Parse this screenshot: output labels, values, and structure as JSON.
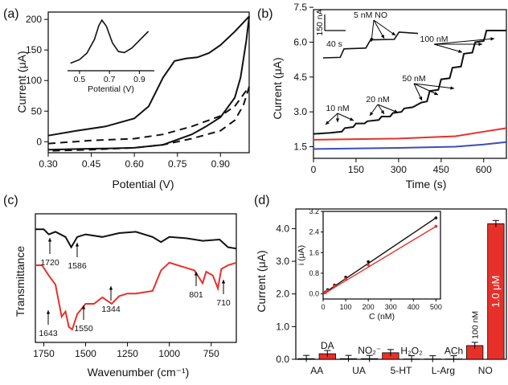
{
  "colors": {
    "black": "#111111",
    "red": "#e8302a",
    "blue": "#3a4fb5",
    "bar_red": "#e8302a"
  },
  "chart_data": [
    {
      "panel": "(a)",
      "type": "line",
      "xlabel": "Potential (V)",
      "ylabel": "Current (μA)",
      "xlim": [
        0.3,
        1.0
      ],
      "ylim": [
        -18,
        212
      ],
      "xticks": [
        "0.30",
        "0.45",
        "0.60",
        "0.75",
        "0.90"
      ],
      "xtick_values": [
        0.3,
        0.45,
        0.6,
        0.75,
        0.9
      ],
      "yticks": [
        "0",
        "50",
        "100",
        "150",
        "200"
      ],
      "ytick_values": [
        0,
        50,
        100,
        150,
        200
      ],
      "series": [
        {
          "style": "solid",
          "forward": [
            [
              0.3,
              10
            ],
            [
              0.4,
              18
            ],
            [
              0.5,
              25
            ],
            [
              0.6,
              38
            ],
            [
              0.65,
              58
            ],
            [
              0.7,
              105
            ],
            [
              0.74,
              132
            ],
            [
              0.78,
              136
            ],
            [
              0.82,
              138
            ],
            [
              0.86,
              145
            ],
            [
              0.9,
              158
            ],
            [
              0.95,
              180
            ],
            [
              1.0,
              205
            ]
          ],
          "reverse": [
            [
              1.0,
              205
            ],
            [
              0.99,
              165
            ],
            [
              0.97,
              105
            ],
            [
              0.95,
              72
            ],
            [
              0.9,
              40
            ],
            [
              0.85,
              25
            ],
            [
              0.8,
              12
            ],
            [
              0.7,
              -5
            ],
            [
              0.6,
              -10
            ],
            [
              0.5,
              -11
            ],
            [
              0.4,
              -12
            ],
            [
              0.3,
              -13
            ]
          ]
        },
        {
          "style": "dashed",
          "forward": [
            [
              0.3,
              -3
            ],
            [
              0.45,
              2
            ],
            [
              0.6,
              5
            ],
            [
              0.7,
              12
            ],
            [
              0.8,
              25
            ],
            [
              0.9,
              42
            ],
            [
              0.95,
              58
            ],
            [
              1.0,
              90
            ]
          ],
          "reverse": [
            [
              1.0,
              90
            ],
            [
              0.98,
              60
            ],
            [
              0.95,
              35
            ],
            [
              0.9,
              18
            ],
            [
              0.8,
              5
            ],
            [
              0.7,
              -5
            ],
            [
              0.6,
              -10
            ],
            [
              0.45,
              -13
            ],
            [
              0.3,
              -15
            ]
          ]
        }
      ],
      "inset": {
        "xlabel": "Potential (V)",
        "xticks": [
          "0.5",
          "0.7",
          "0.9"
        ],
        "xtick_values": [
          0.5,
          0.7,
          0.9
        ],
        "xlim": [
          0.42,
          1.0
        ],
        "points": [
          [
            0.44,
            0.15
          ],
          [
            0.5,
            0.22
          ],
          [
            0.55,
            0.35
          ],
          [
            0.6,
            0.62
          ],
          [
            0.63,
            0.9
          ],
          [
            0.65,
            1.0
          ],
          [
            0.68,
            0.88
          ],
          [
            0.72,
            0.55
          ],
          [
            0.76,
            0.38
          ],
          [
            0.8,
            0.36
          ],
          [
            0.85,
            0.45
          ],
          [
            0.9,
            0.6
          ],
          [
            0.96,
            0.78
          ]
        ]
      }
    },
    {
      "panel": "(b)",
      "type": "line",
      "xlabel": "Time (s)",
      "ylabel": "Current (μA)",
      "xlim": [
        0,
        680
      ],
      "ylim": [
        1.0,
        7.4
      ],
      "xticks": [
        "0",
        "150",
        "300",
        "450",
        "600"
      ],
      "xtick_values": [
        0,
        150,
        300,
        450,
        600
      ],
      "yticks": [
        "1.5",
        "3.0",
        "4.5",
        "6.0",
        "7.5"
      ],
      "ytick_values": [
        1.5,
        3.0,
        4.5,
        6.0,
        7.5
      ],
      "series": [
        {
          "color": "black",
          "points": [
            [
              0,
              2.05
            ],
            [
              60,
              2.1
            ],
            [
              100,
              2.15
            ],
            [
              110,
              2.3
            ],
            [
              140,
              2.35
            ],
            [
              150,
              2.5
            ],
            [
              180,
              2.5
            ],
            [
              190,
              2.6
            ],
            [
              230,
              2.65
            ],
            [
              240,
              2.8
            ],
            [
              270,
              2.8
            ],
            [
              280,
              2.95
            ],
            [
              310,
              3.0
            ],
            [
              320,
              3.15
            ],
            [
              350,
              3.2
            ],
            [
              380,
              3.4
            ],
            [
              400,
              3.45
            ],
            [
              410,
              3.9
            ],
            [
              440,
              3.95
            ],
            [
              450,
              4.4
            ],
            [
              480,
              4.45
            ],
            [
              490,
              4.9
            ],
            [
              520,
              4.95
            ],
            [
              530,
              5.5
            ],
            [
              560,
              5.55
            ],
            [
              570,
              6.0
            ],
            [
              600,
              6.05
            ],
            [
              610,
              6.5
            ],
            [
              680,
              6.5
            ]
          ]
        },
        {
          "color": "red",
          "points": [
            [
              0,
              1.8
            ],
            [
              300,
              1.85
            ],
            [
              500,
              1.95
            ],
            [
              600,
              2.15
            ],
            [
              680,
              2.3
            ]
          ]
        },
        {
          "color": "blue",
          "points": [
            [
              0,
              1.4
            ],
            [
              300,
              1.45
            ],
            [
              500,
              1.5
            ],
            [
              600,
              1.6
            ],
            [
              680,
              1.7
            ]
          ]
        }
      ],
      "annotations": [
        "10 nM",
        "20 nM",
        "50 nM",
        "100 nM"
      ],
      "inset": {
        "label": "5 nM NO",
        "scale_y": "150 nA",
        "scale_x": "40 s",
        "points": [
          [
            0,
            0
          ],
          [
            0.18,
            0.02
          ],
          [
            0.22,
            0.35
          ],
          [
            0.45,
            0.38
          ],
          [
            0.5,
            0.7
          ],
          [
            0.75,
            0.72
          ],
          [
            0.8,
            1.0
          ],
          [
            1.0,
            0.95
          ]
        ]
      }
    },
    {
      "panel": "(c)",
      "type": "line",
      "xlabel": "Wavenumber (cm⁻¹)",
      "ylabel": "Transmittance",
      "xlim": [
        1800,
        600
      ],
      "xticks": [
        "1750",
        "1500",
        "1250",
        "1000",
        "750"
      ],
      "xtick_values": [
        1750,
        1500,
        1250,
        1000,
        750
      ],
      "series": [
        {
          "color": "black",
          "points": [
            [
              1800,
              0.88
            ],
            [
              1750,
              0.88
            ],
            [
              1720,
              0.84
            ],
            [
              1680,
              0.86
            ],
            [
              1620,
              0.82
            ],
            [
              1586,
              0.74
            ],
            [
              1550,
              0.82
            ],
            [
              1500,
              0.84
            ],
            [
              1400,
              0.82
            ],
            [
              1300,
              0.85
            ],
            [
              1200,
              0.86
            ],
            [
              1100,
              0.82
            ],
            [
              1050,
              0.78
            ],
            [
              1000,
              0.82
            ],
            [
              900,
              0.81
            ],
            [
              800,
              0.79
            ],
            [
              700,
              0.8
            ],
            [
              650,
              0.74
            ],
            [
              600,
              0.73
            ]
          ]
        },
        {
          "color": "red",
          "points": [
            [
              1800,
              0.6
            ],
            [
              1760,
              0.6
            ],
            [
              1720,
              0.52
            ],
            [
              1680,
              0.45
            ],
            [
              1643,
              0.2
            ],
            [
              1620,
              0.24
            ],
            [
              1600,
              0.12
            ],
            [
              1580,
              0.1
            ],
            [
              1550,
              0.22
            ],
            [
              1500,
              0.3
            ],
            [
              1450,
              0.3
            ],
            [
              1400,
              0.35
            ],
            [
              1344,
              0.3
            ],
            [
              1300,
              0.36
            ],
            [
              1250,
              0.38
            ],
            [
              1200,
              0.38
            ],
            [
              1100,
              0.4
            ],
            [
              1050,
              0.56
            ],
            [
              1000,
              0.62
            ],
            [
              950,
              0.6
            ],
            [
              900,
              0.58
            ],
            [
              850,
              0.56
            ],
            [
              801,
              0.46
            ],
            [
              780,
              0.55
            ],
            [
              740,
              0.52
            ],
            [
              710,
              0.42
            ],
            [
              690,
              0.57
            ],
            [
              650,
              0.6
            ],
            [
              600,
              0.62
            ]
          ]
        }
      ],
      "annotations": [
        "1720",
        "1586",
        "801",
        "710",
        "1643",
        "1550",
        "1344"
      ]
    },
    {
      "panel": "(d)",
      "type": "bar",
      "ylabel": "Current (μA)",
      "ylim": [
        0,
        4.6
      ],
      "yticks": [
        "0.0",
        "1.0",
        "2.0",
        "3.0",
        "4.0"
      ],
      "ytick_values": [
        0,
        1,
        2,
        3,
        4
      ],
      "categories": [
        "AA",
        "UA",
        "5-HT",
        "L-Arg",
        "NO"
      ],
      "bars": [
        {
          "label": "",
          "value": 0.02,
          "color": "red"
        },
        {
          "label": "DA",
          "value": 0.17,
          "color": "red"
        },
        {
          "label": "",
          "value": 0.02,
          "color": "red"
        },
        {
          "label": "NO₂⁻",
          "value": 0.02,
          "color": "red"
        },
        {
          "label": "",
          "value": 0.2,
          "color": "red"
        },
        {
          "label": "H₂O₂",
          "value": 0.01,
          "color": "red"
        },
        {
          "label": "",
          "value": 0.01,
          "color": "red"
        },
        {
          "label": "ACh",
          "value": 0.01,
          "color": "red"
        },
        {
          "label": "100 nM",
          "value": 0.42,
          "color": "red"
        },
        {
          "label": "1.0 μM",
          "value": 4.15,
          "color": "red"
        }
      ],
      "inset": {
        "xlabel": "C (nM)",
        "ylabel": "i (μA)",
        "xlim": [
          0,
          520
        ],
        "ylim": [
          -0.2,
          3.2
        ],
        "xticks": [
          "0",
          "100",
          "200",
          "300",
          "400",
          "500"
        ],
        "xtick_values": [
          0,
          100,
          200,
          300,
          400,
          500
        ],
        "yticks": [
          "0.0",
          "0.8",
          "1.6",
          "2.4",
          "3.2"
        ],
        "ytick_values": [
          0,
          0.8,
          1.6,
          2.4,
          3.2
        ],
        "series": [
          {
            "color": "black",
            "points": [
              [
                10,
                0.07
              ],
              [
                20,
                0.16
              ],
              [
                50,
                0.34
              ],
              [
                100,
                0.65
              ],
              [
                200,
                1.25
              ],
              [
                500,
                2.95
              ]
            ]
          },
          {
            "color": "red",
            "points": [
              [
                10,
                0.05
              ],
              [
                20,
                0.12
              ],
              [
                50,
                0.3
              ],
              [
                100,
                0.58
              ],
              [
                200,
                1.12
              ],
              [
                500,
                2.62
              ]
            ]
          }
        ]
      }
    }
  ]
}
